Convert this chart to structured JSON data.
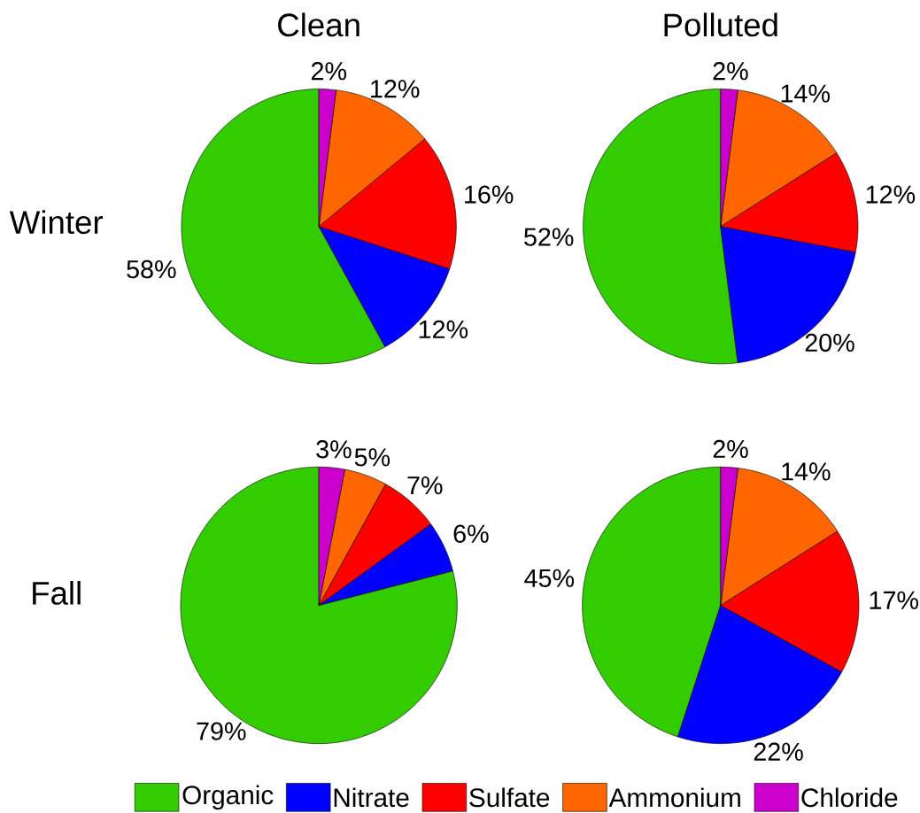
{
  "chart_data": [
    {
      "type": "pie",
      "title": "Clean",
      "ylabel": "Winter",
      "categories": [
        null,
        null,
        null,
        null,
        null
      ],
      "values": [
        58,
        12,
        16,
        12,
        2
      ],
      "value_labels": [
        "58%",
        "12%",
        "16%",
        "12%",
        "2%"
      ],
      "colors": [
        "#33cc00",
        "#0000ff",
        "#ff0000",
        "#ff6600",
        "#cc00cc"
      ]
    },
    {
      "type": "pie",
      "title": "Polluted",
      "categories": [
        null,
        null,
        null,
        null,
        null
      ],
      "values": [
        52,
        20,
        12,
        14,
        2
      ],
      "value_labels": [
        "52%",
        "20%",
        "12%",
        "14%",
        "2%"
      ],
      "colors": [
        "#33cc00",
        "#0000ff",
        "#ff0000",
        "#ff6600",
        "#cc00cc"
      ]
    },
    {
      "type": "pie",
      "ylabel": "Fall",
      "categories": [
        null,
        null,
        null,
        null,
        null
      ],
      "values": [
        79,
        6,
        7,
        5,
        3
      ],
      "value_labels": [
        "79%",
        "6%",
        "7%",
        "5%",
        "3%"
      ],
      "colors": [
        "#33cc00",
        "#0000ff",
        "#ff0000",
        "#ff6600",
        "#cc00cc"
      ]
    },
    {
      "type": "pie",
      "categories": [
        "Organic",
        "Nitrate",
        "Sulfate",
        "Ammonium",
        "Chloride"
      ],
      "values": [
        45,
        22,
        17,
        14,
        2
      ],
      "value_labels": [
        "45%",
        "22%",
        "17%",
        "14%",
        "2%"
      ],
      "colors": [
        "#33cc00",
        "#0000ff",
        "#ff0000",
        "#ff6600",
        "#cc00cc"
      ],
      "legend": "bottom"
    }
  ]
}
